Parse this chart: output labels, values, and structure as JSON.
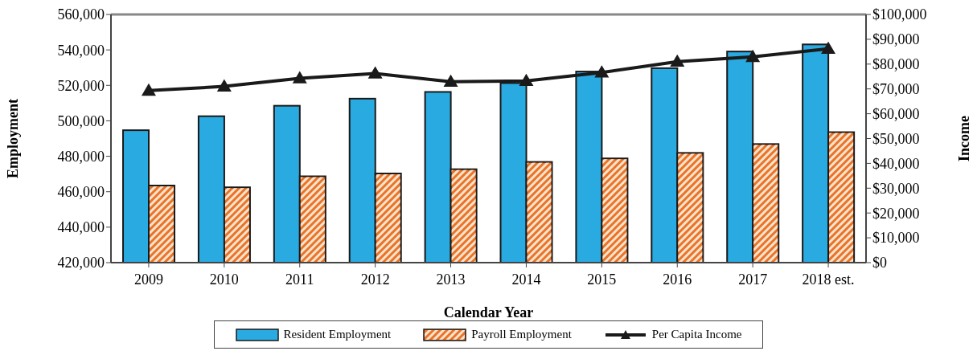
{
  "chart_data": {
    "type": "bar",
    "xlabel": "Calendar Year",
    "ylabel": "Employment",
    "y2label": "Income",
    "categories": [
      "2009",
      "2010",
      "2011",
      "2012",
      "2013",
      "2014",
      "2015",
      "2016",
      "2017",
      "2018 est."
    ],
    "series": [
      {
        "name": "Resident Employment",
        "color": "#29abe2",
        "values": [
          494700,
          502600,
          508500,
          512500,
          516300,
          521300,
          527800,
          529700,
          539100,
          543100
        ]
      },
      {
        "name": "Payroll Employment",
        "color": "#e8742a",
        "values": [
          463500,
          462500,
          468700,
          470300,
          472700,
          476800,
          478800,
          481900,
          486900,
          493600
        ]
      },
      {
        "name": "Per Capita Income",
        "type": "line",
        "axis": "y2",
        "color": "#1a1a1a",
        "marker": "triangle",
        "values": [
          69300,
          71000,
          74300,
          76200,
          72900,
          73200,
          76600,
          81000,
          82900,
          86200
        ]
      }
    ],
    "ylim": [
      420000,
      560000
    ],
    "yticks": [
      {
        "value": 420000,
        "label": "420,000"
      },
      {
        "value": 440000,
        "label": "440,000"
      },
      {
        "value": 460000,
        "label": "460,000"
      },
      {
        "value": 480000,
        "label": "480,000"
      },
      {
        "value": 500000,
        "label": "500,000"
      },
      {
        "value": 520000,
        "label": "520,000"
      },
      {
        "value": 540000,
        "label": "540,000"
      },
      {
        "value": 560000,
        "label": "560,000"
      }
    ],
    "y2lim": [
      0,
      100000
    ],
    "y2ticks": [
      {
        "value": 0,
        "label": "$0"
      },
      {
        "value": 10000,
        "label": "$10,000"
      },
      {
        "value": 20000,
        "label": "$20,000"
      },
      {
        "value": 30000,
        "label": "$30,000"
      },
      {
        "value": 40000,
        "label": "$40,000"
      },
      {
        "value": 50000,
        "label": "$50,000"
      },
      {
        "value": 60000,
        "label": "$60,000"
      },
      {
        "value": 70000,
        "label": "$70,000"
      },
      {
        "value": 80000,
        "label": "$80,000"
      },
      {
        "value": 90000,
        "label": "$90,000"
      },
      {
        "value": 100000,
        "label": "$100,000"
      }
    ],
    "grid": false,
    "legend": "bottom"
  }
}
